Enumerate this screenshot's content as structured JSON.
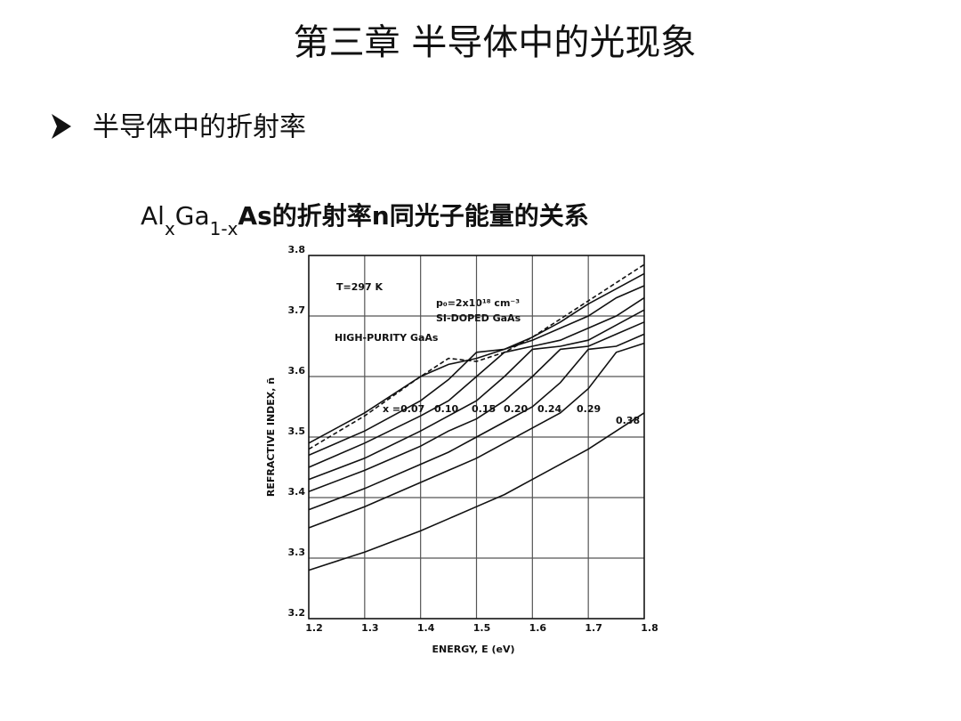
{
  "slide": {
    "title": "第三章 半导体中的光现象",
    "bullet": "半导体中的折射率"
  },
  "chart_data": {
    "type": "line",
    "title_parts": [
      "Al",
      "x",
      "Ga",
      "1-x",
      "As的折射率n同光子能量的关系"
    ],
    "x_label": "ENERGY,  E (eV)",
    "y_label": "REFRACTIVE INDEX, n̄",
    "annotations": [
      "T=297 K",
      "p₀=2x10¹⁸ cm⁻³"
    ],
    "x": [
      1.2,
      1.3,
      1.4,
      1.45,
      1.5,
      1.55,
      1.6,
      1.65,
      1.7,
      1.75,
      1.8
    ],
    "series": [
      {
        "name": "x =0.07",
        "color": "#111111",
        "values": [
          3.47,
          3.51,
          3.56,
          3.595,
          3.64,
          3.645,
          3.66,
          3.68,
          3.7,
          3.73,
          3.75
        ]
      },
      {
        "name": "0.10",
        "color": "#111111",
        "values": [
          3.45,
          3.49,
          3.535,
          3.56,
          3.6,
          3.64,
          3.65,
          3.66,
          3.68,
          3.7,
          3.73
        ]
      },
      {
        "name": "0.15",
        "color": "#111111",
        "values": [
          3.43,
          3.465,
          3.51,
          3.535,
          3.56,
          3.6,
          3.645,
          3.65,
          3.66,
          3.685,
          3.71
        ]
      },
      {
        "name": "0.20",
        "color": "#111111",
        "values": [
          3.41,
          3.445,
          3.485,
          3.51,
          3.53,
          3.56,
          3.6,
          3.645,
          3.65,
          3.67,
          3.69
        ]
      },
      {
        "name": "0.24",
        "color": "#111111",
        "values": [
          3.38,
          3.415,
          3.455,
          3.475,
          3.5,
          3.525,
          3.55,
          3.59,
          3.645,
          3.65,
          3.67
        ]
      },
      {
        "name": "0.29",
        "color": "#111111",
        "values": [
          3.35,
          3.385,
          3.425,
          3.445,
          3.465,
          3.49,
          3.515,
          3.54,
          3.58,
          3.64,
          3.655
        ]
      },
      {
        "name": "0.38",
        "color": "#111111",
        "values": [
          3.28,
          3.31,
          3.345,
          3.365,
          3.385,
          3.405,
          3.43,
          3.455,
          3.48,
          3.51,
          3.54
        ]
      },
      {
        "name": "HIGH-PURITY GaAs",
        "color": "#111111",
        "values": [
          3.49,
          3.54,
          3.6,
          3.62,
          3.63,
          3.645,
          3.665,
          3.69,
          3.72,
          3.745,
          3.77
        ]
      },
      {
        "name": "SI-DOPED GaAs",
        "color": "#111111",
        "dashed": true,
        "values": [
          3.48,
          3.535,
          3.6,
          3.63,
          3.625,
          3.64,
          3.665,
          3.695,
          3.725,
          3.755,
          3.785
        ]
      }
    ],
    "xlim": [
      1.2,
      1.8
    ],
    "xticks": [
      1.2,
      1.3,
      1.4,
      1.5,
      1.6,
      1.7,
      1.8
    ],
    "ylim": [
      3.2,
      3.8
    ],
    "yticks": [
      3.2,
      3.3,
      3.4,
      3.5,
      3.6,
      3.7,
      3.8
    ],
    "grid": true
  }
}
